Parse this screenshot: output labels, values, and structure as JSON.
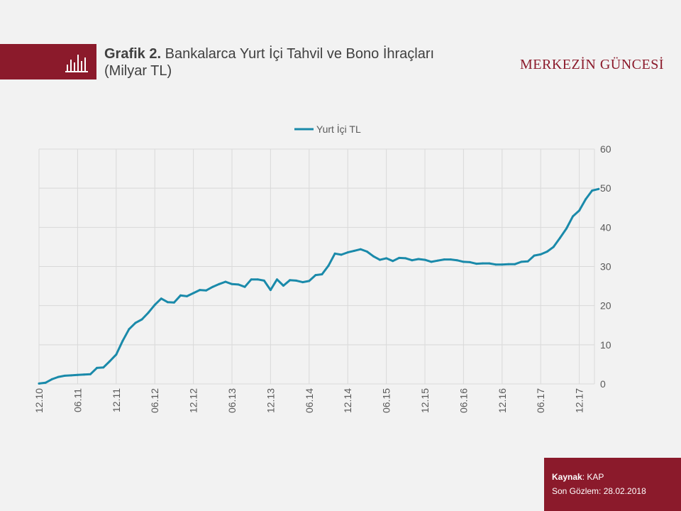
{
  "header": {
    "icon": "bar-chart-icon",
    "title_prefix": "Grafik 2.",
    "title_text": " Bankalarca Yurt İçi Tahvil ve Bono İhraçları",
    "title_unit": "(Milyar TL)",
    "brand": "MERKEZİN GÜNCESİ"
  },
  "colors": {
    "accent": "#8b1a2b",
    "series": "#1a8aaa",
    "grid": "#d9d9d9"
  },
  "source": {
    "label": "Kaynak",
    "value": ": KAP",
    "last_obs": "Son Gözlem: 28.02.2018"
  },
  "chart_data": {
    "type": "line",
    "title": "",
    "xlabel": "",
    "ylabel": "",
    "ylim": [
      0,
      60
    ],
    "yticks": [
      0,
      10,
      20,
      30,
      40,
      50,
      60
    ],
    "y_axis_side": "right",
    "grid": true,
    "legend": "top-center",
    "tick_labels": [
      "12.10",
      "06.11",
      "12.11",
      "06.12",
      "12.12",
      "06.13",
      "12.13",
      "06.14",
      "12.14",
      "06.15",
      "12.15",
      "06.16",
      "12.16",
      "06.17",
      "12.17"
    ],
    "series": [
      {
        "name": "Yurt İçi TL",
        "values": [
          0.1,
          0.3,
          1.2,
          1.8,
          2.1,
          2.2,
          2.3,
          2.4,
          2.5,
          4.1,
          4.2,
          5.8,
          7.5,
          11.0,
          14.0,
          15.6,
          16.5,
          18.2,
          20.2,
          21.8,
          20.9,
          20.8,
          22.6,
          22.4,
          23.2,
          24.0,
          23.9,
          24.8,
          25.5,
          26.1,
          25.5,
          25.4,
          24.8,
          26.7,
          26.7,
          26.4,
          24.0,
          26.7,
          25.1,
          26.5,
          26.4,
          26.0,
          26.3,
          27.8,
          28.0,
          30.2,
          33.3,
          33.0,
          33.6,
          34.0,
          34.4,
          33.8,
          32.6,
          31.7,
          32.1,
          31.4,
          32.2,
          32.1,
          31.6,
          31.9,
          31.7,
          31.2,
          31.5,
          31.8,
          31.8,
          31.6,
          31.2,
          31.1,
          30.7,
          30.8,
          30.8,
          30.5,
          30.5,
          30.6,
          30.6,
          31.2,
          31.3,
          32.8,
          33.1,
          33.8,
          35.0,
          37.3,
          39.7,
          42.8,
          44.3,
          47.2,
          49.4,
          49.8
        ]
      }
    ]
  }
}
